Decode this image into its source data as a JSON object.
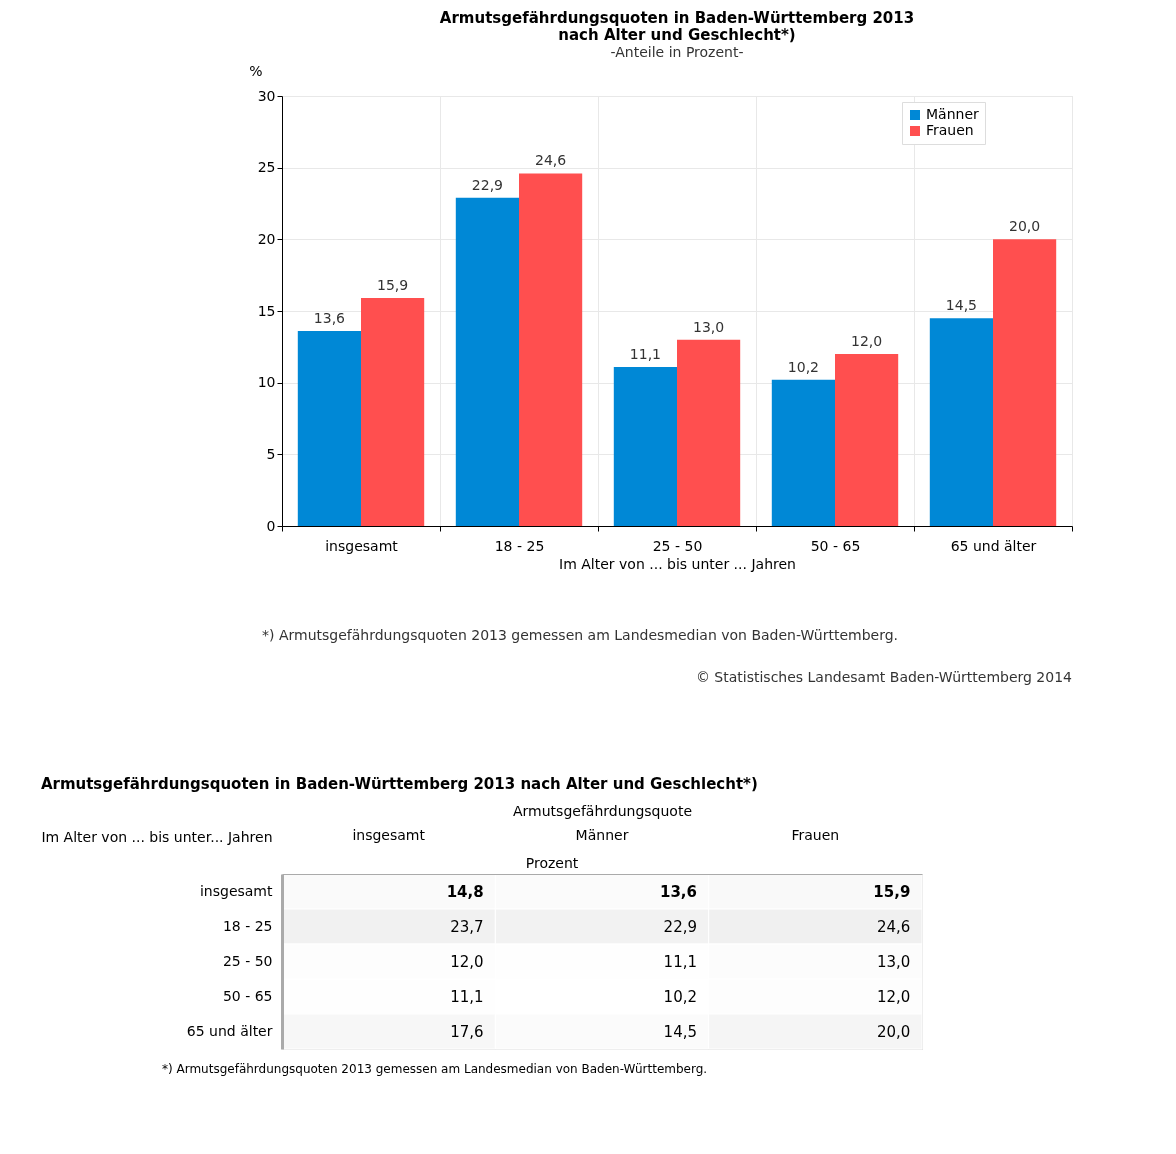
{
  "chart_data": [
    {
      "type": "bar",
      "title": "Armutsgefährdungsquoten in Baden-Württemberg  2013\nnach Alter und Geschlecht*)",
      "subtitle": "-Anteile in Prozent-",
      "ylabel": "%",
      "xlabel": "Im Alter von ... bis unter ... Jahren",
      "categories": [
        "insgesamt",
        "18 - 25",
        "25 - 50",
        "50 - 65",
        "65 und älter"
      ],
      "series": [
        {
          "name": "Männer",
          "color": "#0088d6",
          "values": [
            13.6,
            22.9,
            11.1,
            10.2,
            14.5
          ],
          "value_labels": [
            "13,6",
            "22,9",
            "11,1",
            "10,2",
            "14,5"
          ]
        },
        {
          "name": "Frauen",
          "color": "#ff4f4f",
          "values": [
            15.9,
            24.6,
            13.0,
            12.0,
            20.0
          ],
          "value_labels": [
            "15,9",
            "24,6",
            "13,0",
            "12,0",
            "20,0"
          ]
        }
      ],
      "ylim": [
        0,
        30
      ],
      "yticks": [
        0,
        5,
        10,
        15,
        20,
        25,
        30
      ],
      "grid": true,
      "legend": "top right",
      "annotations": [
        "*) Armutsgefährdungsquoten 2013 gemessen am Landesmedian von Baden-Württemberg.",
        "© Statistisches Landesamt Baden-Württemberg 2014"
      ]
    },
    {
      "type": "heatmap",
      "title": "Armutsgefährdungsquoten in Baden-Württemberg 2013 nach Alter und Geschlecht*)",
      "xlabel": "Armutsgefährdungsquote",
      "ylabel": "Im Alter von ... bis unter... Jahren",
      "categories": [
        "insgesamt",
        "Männer",
        "Frauen"
      ],
      "y_categories": [
        "insgesamt",
        "18 - 25",
        "25 - 50",
        "50 - 65",
        "65 und älter"
      ],
      "cells": [
        [
          14.8,
          13.6,
          15.9
        ],
        [
          23.7,
          22.9,
          24.6
        ],
        [
          12.0,
          11.1,
          13.0
        ],
        [
          11.1,
          10.2,
          12.0
        ],
        [
          17.6,
          14.5,
          20.0
        ]
      ],
      "cell_labels": [
        [
          "14,8",
          "13,6",
          "15,9"
        ],
        [
          "23,7",
          "22,9",
          "24,6"
        ],
        [
          "12,0",
          "11,1",
          "13,0"
        ],
        [
          "11,1",
          "10,2",
          "12,0"
        ],
        [
          "17,6",
          "14,5",
          "20,0"
        ]
      ],
      "annotations": [
        "Prozent",
        "*) Armutsgefährdungsquoten 2013 gemessen am Landesmedian von Baden-Württemberg."
      ]
    }
  ]
}
